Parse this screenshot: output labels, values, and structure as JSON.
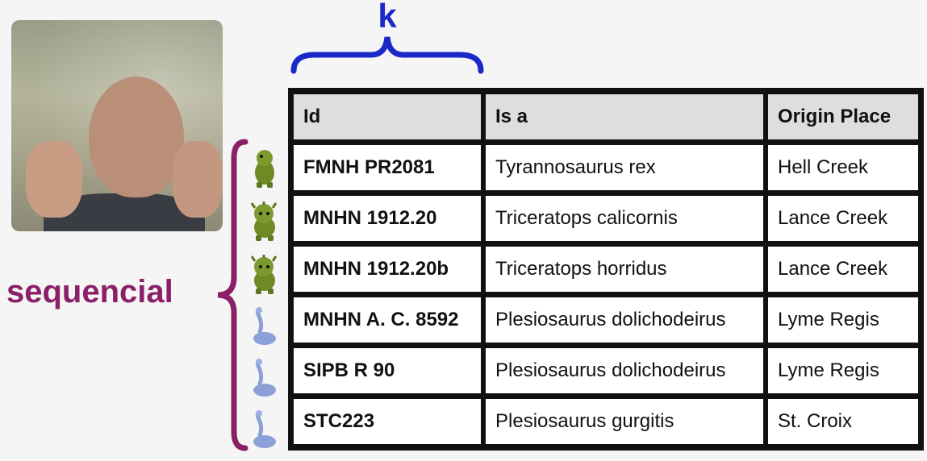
{
  "annotations": {
    "k_label": "k",
    "sequential_label": "sequencial"
  },
  "colors": {
    "k_accent": "#1a29c8",
    "sequential_accent": "#8a2168",
    "header_bg": "#dedede",
    "cell_bg": "#ffffff",
    "tyrannosaurus_icon": "#6d8a25",
    "triceratops_icon": "#6d8a25",
    "plesiosaurus_icon": "#8ca0d8"
  },
  "table": {
    "headers": [
      "Id",
      "Is a",
      "Origin Place"
    ],
    "rows": [
      {
        "id": "FMNH PR2081",
        "is_a": "Tyrannosaurus rex",
        "origin": "Hell Creek",
        "icon": "tyrannosaurus-icon"
      },
      {
        "id": "MNHN 1912.20",
        "is_a": "Triceratops calicornis",
        "origin": "Lance Creek",
        "icon": "triceratops-icon"
      },
      {
        "id": "MNHN 1912.20b",
        "is_a": "Triceratops horridus",
        "origin": "Lance Creek",
        "icon": "triceratops-icon"
      },
      {
        "id": "MNHN A. C. 8592",
        "is_a": "Plesiosaurus dolichodeirus",
        "origin": "Lyme Regis",
        "icon": "plesiosaurus-icon"
      },
      {
        "id": "SIPB R 90",
        "is_a": "Plesiosaurus dolichodeirus",
        "origin": "Lyme Regis",
        "icon": "plesiosaurus-icon"
      },
      {
        "id": "STC223",
        "is_a": "Plesiosaurus gurgitis",
        "origin": "St. Croix",
        "icon": "plesiosaurus-icon"
      }
    ]
  }
}
